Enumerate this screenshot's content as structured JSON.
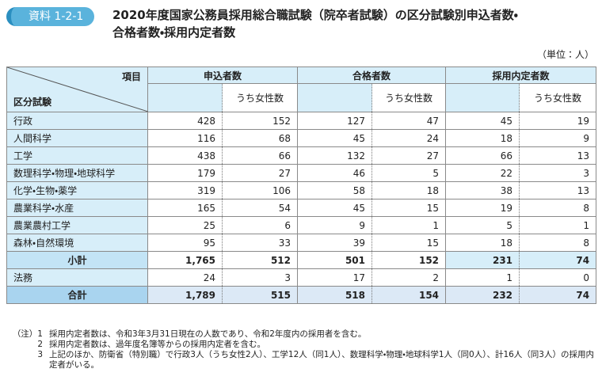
{
  "header": {
    "badge": "資料 1-2-1",
    "title_lines": [
      "2020年度国家公務員採用総合職試験（院卒者試験）の区分試験別申込者数・",
      "合格者数・採用内定者数"
    ],
    "unit": "（単位：人）"
  },
  "table": {
    "corner_top": "項目",
    "corner_bottom": "区分試験",
    "groups": [
      "申込者数",
      "合格者数",
      "採用内定者数"
    ],
    "sub": "うち女性数",
    "rows": [
      [
        "行政",
        "428",
        "152",
        "127",
        "47",
        "45",
        "19"
      ],
      [
        "人間科学",
        "116",
        "68",
        "45",
        "24",
        "18",
        "9"
      ],
      [
        "工学",
        "438",
        "66",
        "132",
        "27",
        "66",
        "13"
      ],
      [
        "数理科学・物理・地球科学",
        "179",
        "27",
        "46",
        "5",
        "22",
        "3"
      ],
      [
        "化学・生物・薬学",
        "319",
        "106",
        "58",
        "18",
        "38",
        "13"
      ],
      [
        "農業科学・水産",
        "165",
        "54",
        "45",
        "15",
        "19",
        "8"
      ],
      [
        "農業農村工学",
        "25",
        "6",
        "9",
        "1",
        "5",
        "1"
      ],
      [
        "森林・自然環境",
        "95",
        "33",
        "39",
        "15",
        "18",
        "8"
      ],
      [
        "小計",
        "1,765",
        "512",
        "501",
        "152",
        "231",
        "74"
      ],
      [
        "法務",
        "24",
        "3",
        "17",
        "2",
        "1",
        "0"
      ],
      [
        "合計",
        "1,789",
        "515",
        "518",
        "154",
        "232",
        "74"
      ]
    ]
  },
  "notes": [
    {
      "marker": "（注）1",
      "text": "採用内定者数は、令和3年3月31日現在の人数であり、令和2年度内の採用者を含む。"
    },
    {
      "marker": "2",
      "text": "採用内定者数は、過年度名簿等からの採用内定者を含む。"
    },
    {
      "marker": "3",
      "text": "上記のほか、防衛省（特別職）で行政3人（うち女性2人）、工学12人（同1人）、数理科学・物理・地球科学1人（同0人）、計16人（同3人）の採用内定者がいる。"
    }
  ]
}
